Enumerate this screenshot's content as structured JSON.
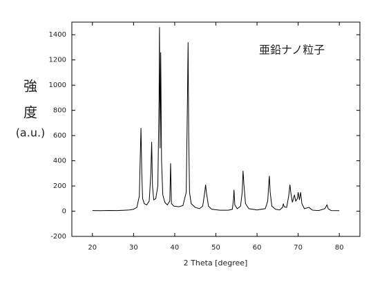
{
  "chart_data": {
    "type": "line",
    "annotation": "亜鉛ナノ粒子",
    "ylabel_lines": [
      "強",
      "度",
      "(a.u.)"
    ],
    "xlabel": "2 Theta [degree]",
    "x": [
      20,
      22,
      24,
      26,
      28,
      29,
      30,
      30.8,
      31.4,
      31.6,
      31.8,
      32.0,
      32.2,
      32.6,
      33.2,
      33.8,
      34.2,
      34.4,
      34.6,
      34.9,
      35.4,
      35.9,
      36.2,
      36.3,
      36.45,
      36.6,
      36.8,
      37.1,
      37.6,
      38.2,
      38.8,
      39.0,
      39.2,
      39.8,
      41,
      42,
      42.8,
      43.1,
      43.25,
      43.4,
      43.6,
      44,
      45,
      46,
      46.8,
      47.3,
      47.5,
      47.7,
      48.2,
      49,
      51,
      53,
      54,
      54.3,
      54.4,
      54.6,
      55.2,
      56,
      56.4,
      56.6,
      56.8,
      57.2,
      58,
      60,
      62,
      62.6,
      62.9,
      63.0,
      63.2,
      63.6,
      64.5,
      65.5,
      66.2,
      66.4,
      66.6,
      67.2,
      67.7,
      68.0,
      68.2,
      68.6,
      69.1,
      69.4,
      69.8,
      70.0,
      70.3,
      70.6,
      70.9,
      71.5,
      72.6,
      73.5,
      75,
      76.5,
      77.0,
      77.3,
      78,
      80
    ],
    "values": [
      5,
      4,
      6,
      5,
      8,
      10,
      15,
      30,
      120,
      400,
      660,
      300,
      100,
      60,
      50,
      80,
      300,
      550,
      200,
      90,
      100,
      200,
      900,
      1460,
      500,
      1260,
      400,
      130,
      70,
      50,
      80,
      380,
      60,
      40,
      35,
      45,
      150,
      900,
      1340,
      600,
      150,
      60,
      30,
      20,
      40,
      150,
      210,
      150,
      40,
      15,
      8,
      8,
      15,
      100,
      170,
      50,
      20,
      40,
      150,
      320,
      220,
      60,
      20,
      10,
      20,
      80,
      240,
      280,
      150,
      40,
      15,
      10,
      30,
      60,
      35,
      30,
      120,
      210,
      150,
      70,
      130,
      80,
      100,
      150,
      90,
      150,
      60,
      20,
      30,
      8,
      5,
      20,
      50,
      20,
      5,
      4
    ],
    "color": "#000000",
    "xlim": [
      15,
      85
    ],
    "xticks": [
      20,
      30,
      40,
      50,
      60,
      70,
      80
    ],
    "ylim": [
      -200,
      1500
    ],
    "yticks": [
      -200,
      0,
      200,
      400,
      600,
      800,
      1000,
      1200,
      1400
    ]
  }
}
